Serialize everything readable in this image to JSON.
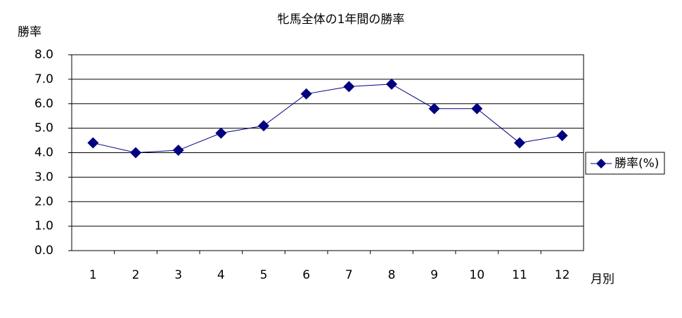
{
  "chart_data": {
    "type": "line",
    "title": "牝馬全体の1年間の勝率",
    "y_label": "勝率",
    "x_label": "月別",
    "categories": [
      "1",
      "2",
      "3",
      "4",
      "5",
      "6",
      "7",
      "8",
      "9",
      "10",
      "11",
      "12"
    ],
    "series": [
      {
        "name": "勝率(%)",
        "color": "#000080",
        "values": [
          4.4,
          4.0,
          4.1,
          4.8,
          5.1,
          6.4,
          6.7,
          6.8,
          5.8,
          5.8,
          4.4,
          4.7
        ]
      }
    ],
    "ylim": [
      0,
      8
    ],
    "yticks": [
      {
        "value": 0,
        "label": "0.0"
      },
      {
        "value": 1,
        "label": "1.0"
      },
      {
        "value": 2,
        "label": "2.0"
      },
      {
        "value": 3,
        "label": "3.0"
      },
      {
        "value": 4,
        "label": "4.0"
      },
      {
        "value": 5,
        "label": "5.0"
      },
      {
        "value": 6,
        "label": "6.0"
      },
      {
        "value": 7,
        "label": "7.0"
      },
      {
        "value": 8,
        "label": "8.0"
      }
    ],
    "grid": true,
    "legend": "right"
  }
}
